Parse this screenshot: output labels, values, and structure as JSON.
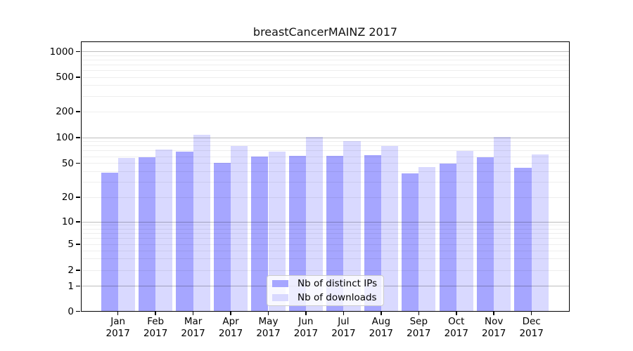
{
  "chart_data": {
    "type": "bar",
    "title": "breastCancerMAINZ 2017",
    "categories": [
      "Jan",
      "Feb",
      "Mar",
      "Apr",
      "May",
      "Jun",
      "Jul",
      "Aug",
      "Sep",
      "Oct",
      "Nov",
      "Dec"
    ],
    "year_label": "2017",
    "series": [
      {
        "name": "Nb of distinct IPs",
        "color": "#a6a6ff",
        "values": [
          39,
          59,
          69,
          51,
          60,
          61,
          61,
          62,
          38,
          50,
          59,
          44
        ]
      },
      {
        "name": "Nb of downloads",
        "color": "#d9d9ff",
        "values": [
          58,
          73,
          107,
          80,
          69,
          101,
          91,
          80,
          45,
          70,
          101,
          64
        ]
      }
    ],
    "yticks": [
      0,
      1,
      2,
      5,
      10,
      20,
      50,
      100,
      200,
      500,
      1000
    ],
    "yscale": "symlog",
    "ylim": [
      0,
      1400
    ],
    "grid": "horizontal major and minor gridlines",
    "legend_position": "inside bottom-center",
    "axis_text_color": "#000000",
    "gridline_major_color": "#bdbdbd",
    "gridline_minor_color": "#ededed"
  }
}
